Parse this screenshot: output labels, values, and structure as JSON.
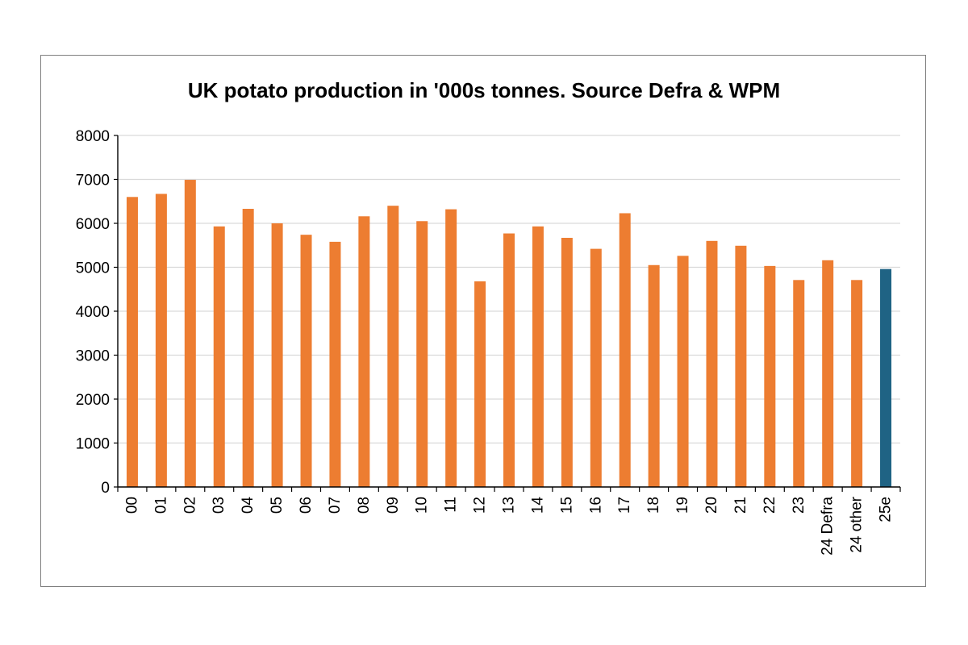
{
  "chart_data": {
    "type": "bar",
    "title": "UK potato production in '000s tonnes. Source Defra & WPM",
    "xlabel": "",
    "ylabel": "",
    "ylim": [
      0,
      8000
    ],
    "yticks": [
      0,
      1000,
      2000,
      3000,
      4000,
      5000,
      6000,
      7000,
      8000
    ],
    "grid": true,
    "categories": [
      "00",
      "01",
      "02",
      "03",
      "04",
      "05",
      "06",
      "07",
      "08",
      "09",
      "10",
      "11",
      "12",
      "13",
      "14",
      "15",
      "16",
      "17",
      "18",
      "19",
      "20",
      "21",
      "22",
      "23",
      "24 Defra",
      "24 other",
      "25e"
    ],
    "values": [
      6600,
      6670,
      6990,
      5930,
      6330,
      6000,
      5740,
      5580,
      6160,
      6400,
      6050,
      6320,
      4680,
      5770,
      5930,
      5670,
      5420,
      6230,
      5050,
      5260,
      5600,
      5490,
      5030,
      4710,
      5160,
      4710,
      4960
    ],
    "colors": {
      "default": "#ED7D31",
      "highlight": "#1F6384",
      "highlight_category": "25e",
      "gridline": "#d9d9d9",
      "axis": "#000000"
    }
  }
}
